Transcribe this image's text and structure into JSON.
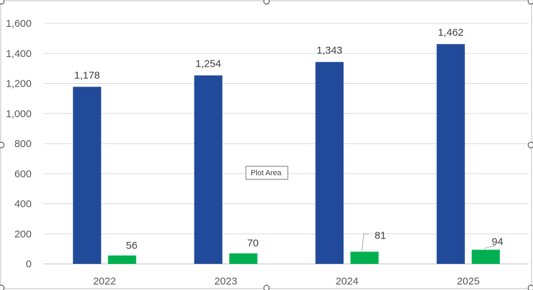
{
  "chart_data": {
    "type": "bar",
    "categories": [
      "2022",
      "2023",
      "2024",
      "2025"
    ],
    "series": [
      {
        "values": [
          1178,
          1254,
          1343,
          1462
        ],
        "labels": [
          "1,178",
          "1,254",
          "1,343",
          "1,462"
        ],
        "color": "#224A9A"
      },
      {
        "values": [
          56,
          70,
          81,
          94
        ],
        "labels": [
          "56",
          "70",
          "81",
          "94"
        ],
        "color": "#00B050"
      }
    ],
    "yticks": [
      0,
      200,
      400,
      600,
      800,
      1000,
      1200,
      1400,
      1600
    ],
    "ytick_labels": [
      "0",
      "200",
      "400",
      "600",
      "800",
      "1,000",
      "1,200",
      "1,400",
      "1,600"
    ],
    "ylim": [
      0,
      1600
    ],
    "grid": true,
    "legend": "none",
    "title": "",
    "xlabel": "",
    "ylabel": ""
  },
  "tooltip": {
    "text": "Plot Area"
  }
}
